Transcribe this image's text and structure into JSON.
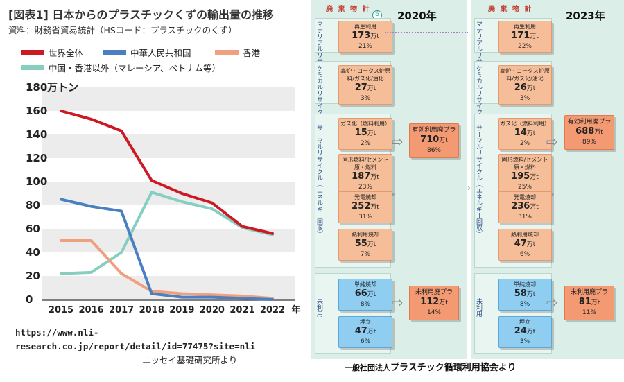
{
  "left": {
    "title": "[図表1] 日本からのプラスチックくずの輸出量の推移",
    "subtitle": "資料：財務省貿易統計（HSコード：プラスチックのくず）",
    "source_url_line1": "https://www.nli-",
    "source_url_line2": "research.co.jp/report/detail/id=77475?site=nli",
    "source_org": "ニッセイ基礎研究所より"
  },
  "chart_data": {
    "type": "line",
    "title": "[図表1] 日本からのプラスチックくずの輸出量の推移",
    "ylabel": "万トン",
    "xlabel": "年",
    "x": [
      2015,
      2016,
      2017,
      2018,
      2019,
      2020,
      2021,
      2022
    ],
    "ylim": [
      0,
      180
    ],
    "yticks": [
      0,
      20,
      40,
      60,
      80,
      100,
      120,
      140,
      160,
      180
    ],
    "series": [
      {
        "name": "世界全体",
        "color": "#cc1a24",
        "values": [
          160,
          153,
          143,
          101,
          90,
          82,
          62,
          56
        ]
      },
      {
        "name": "中華人民共和国",
        "color": "#4a7fc1",
        "values": [
          85,
          79,
          75,
          5,
          2,
          2,
          1,
          0
        ]
      },
      {
        "name": "香港",
        "color": "#f0a07f",
        "values": [
          50,
          50,
          22,
          7,
          5,
          4,
          3,
          1
        ]
      },
      {
        "name": "中国・香港以外（マレーシア、ベトナム等）",
        "color": "#86cfc0",
        "values": [
          22,
          23,
          40,
          91,
          83,
          77,
          61,
          55
        ]
      }
    ],
    "grid": true
  },
  "right": {
    "haiki_label": "廃 棄 物 計",
    "year_2020": "2020年",
    "year_2023": "2023年",
    "circle_number": "6",
    "group_labels": {
      "material": "マテリアルリサイクル",
      "chemical": "ケミカルリサイクル",
      "thermal": "サーマルリサイクル（エネルギー回収）",
      "unused": "未利用"
    },
    "y2020": {
      "boxes": [
        {
          "name": "再生利用",
          "value": "173",
          "unit": "万t",
          "pct": "21%"
        },
        {
          "name": "高炉・コークス炉原料/ガス化/油化",
          "value": "27",
          "unit": "万t",
          "pct": "3%"
        },
        {
          "name": "ガス化（燃料利用）",
          "value": "15",
          "unit": "万t",
          "pct": "2%"
        },
        {
          "name": "固形燃料/セメント原・燃料",
          "value": "187",
          "unit": "万t",
          "pct": "23%"
        },
        {
          "name": "発電焼却",
          "value": "252",
          "unit": "万t",
          "pct": "31%"
        },
        {
          "name": "熱利用焼却",
          "value": "55",
          "unit": "万t",
          "pct": "7%"
        },
        {
          "name": "単純焼却",
          "value": "66",
          "unit": "万t",
          "pct": "8%"
        },
        {
          "name": "埋立",
          "value": "47",
          "unit": "万t",
          "pct": "6%"
        }
      ],
      "effective": {
        "name": "有効利用廃プラ",
        "value": "710",
        "unit": "万t",
        "pct": "86%"
      },
      "unused": {
        "name": "未利用廃プラ",
        "value": "112",
        "unit": "万t",
        "pct": "14%"
      }
    },
    "y2023": {
      "boxes": [
        {
          "name": "再生利用",
          "value": "171",
          "unit": "万t",
          "pct": "22%"
        },
        {
          "name": "高炉・コークス炉原料/ガス化/油化",
          "value": "26",
          "unit": "万t",
          "pct": "3%"
        },
        {
          "name": "ガス化（燃料利用）",
          "value": "14",
          "unit": "万t",
          "pct": "2%"
        },
        {
          "name": "固形燃料/セメント原・燃料",
          "value": "195",
          "unit": "万t",
          "pct": "25%"
        },
        {
          "name": "発電焼却",
          "value": "236",
          "unit": "万t",
          "pct": "31%"
        },
        {
          "name": "熱利用焼却",
          "value": "47",
          "unit": "万t",
          "pct": "6%"
        },
        {
          "name": "単純焼却",
          "value": "58",
          "unit": "万t",
          "pct": "8%"
        },
        {
          "name": "埋立",
          "value": "24",
          "unit": "万t",
          "pct": "3%"
        }
      ],
      "effective": {
        "name": "有効利用廃プラ",
        "value": "688",
        "unit": "万t",
        "pct": "89%"
      },
      "unused": {
        "name": "未利用廃プラ",
        "value": "81",
        "unit": "万t",
        "pct": "11%"
      }
    },
    "source_prefix": "一般社団法人",
    "source_main": "プラスチック循環利用協会より"
  }
}
